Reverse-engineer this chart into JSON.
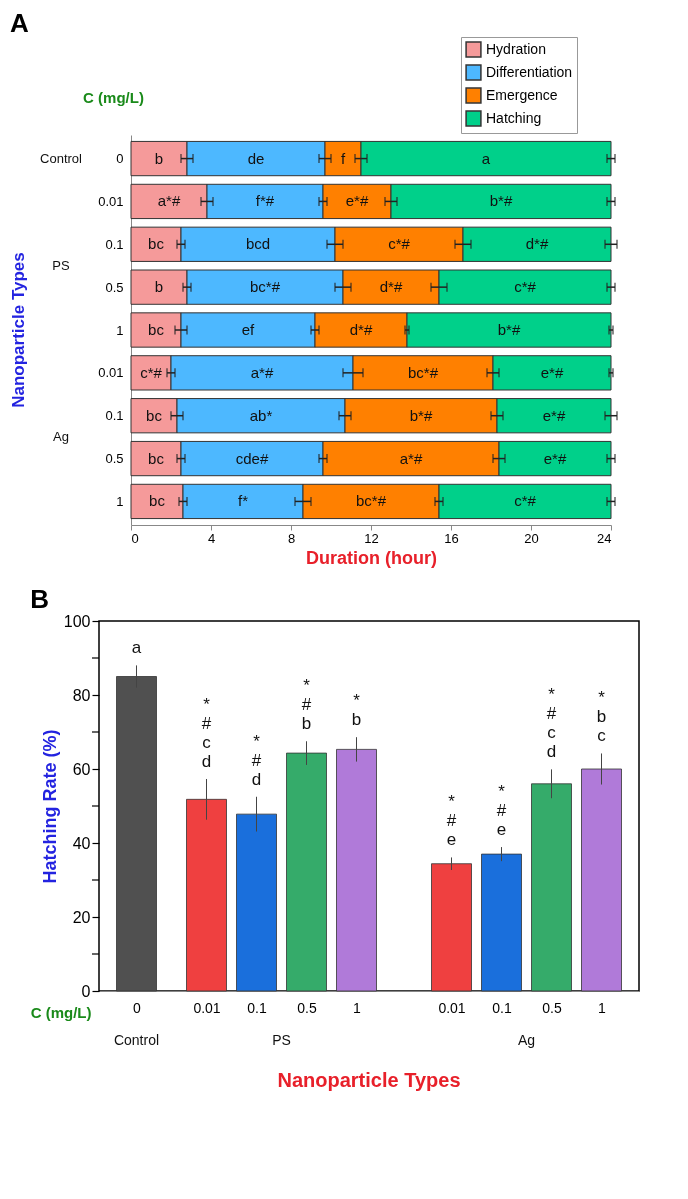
{
  "chart_data": [
    {
      "type": "bar",
      "orientation": "horizontal",
      "stacked": true,
      "title": "A",
      "xlabel": "Duration (hour)",
      "ylabel": "Nanoparticle Types",
      "categories": [
        "0",
        "0.01",
        "0.1",
        "0.5",
        "1",
        "0.01",
        "0.1",
        "0.5",
        "1"
      ],
      "series": [
        {
          "name": "Hydration",
          "color": "#f59a9a",
          "values": [
            2.8,
            3.8,
            2.5,
            2.8,
            2.5,
            2.0,
            2.3,
            2.5,
            2.6
          ],
          "errors": [
            0.3,
            0.3,
            0.2,
            0.2,
            0.3,
            0.2,
            0.3,
            0.2,
            0.2
          ],
          "value_labels": [
            "b",
            "a*#",
            "bc",
            "b",
            "bc",
            "c*#",
            "bc",
            "bc",
            "bc"
          ]
        },
        {
          "name": "Differentiation",
          "color": "#4db8ff",
          "values": [
            6.9,
            5.8,
            7.7,
            7.8,
            6.7,
            9.1,
            8.4,
            7.1,
            6.0
          ],
          "errors": [
            0.3,
            0.2,
            0.4,
            0.4,
            0.2,
            0.5,
            0.3,
            0.2,
            0.4
          ],
          "value_labels": [
            "de",
            "f*#",
            "bcd",
            "bc*#",
            "ef",
            "a*#",
            "ab*",
            "cde#",
            "f*"
          ]
        },
        {
          "name": "Emergence",
          "color": "#ff8000",
          "values": [
            1.8,
            3.4,
            6.4,
            4.8,
            4.6,
            7.0,
            7.6,
            8.8,
            6.8
          ],
          "errors": [
            0.3,
            0.3,
            0.4,
            0.4,
            0.1,
            0.3,
            0.3,
            0.3,
            0.2
          ],
          "value_labels": [
            "f",
            "e*#",
            "c*#",
            "d*#",
            "d*#",
            "bc*#",
            "b*#",
            "a*#",
            "bc*#"
          ]
        },
        {
          "name": "Hatching",
          "color": "#00d08a",
          "values": [
            12.5,
            11.0,
            7.4,
            8.6,
            10.2,
            5.9,
            5.7,
            5.6,
            8.6
          ],
          "errors": [
            0.2,
            0.2,
            0.3,
            0.2,
            0.1,
            0.1,
            0.3,
            0.2,
            0.2
          ],
          "value_labels": [
            "a",
            "b*#",
            "d*#",
            "c*#",
            "b*#",
            "e*#",
            "e*#",
            "e*#",
            "c*#"
          ]
        }
      ],
      "xlim": [
        0,
        24
      ],
      "xticks": [
        0,
        4,
        8,
        12,
        16,
        20,
        24
      ],
      "legend": "top right",
      "annotations": [
        "C (mg/L)",
        "Control",
        "PS",
        "Ag"
      ]
    },
    {
      "type": "bar",
      "title": "B",
      "xlabel": "Nanoparticle Types",
      "ylabel": "Hatching Rate (%)",
      "categories": [
        "0",
        "0.01",
        "0.1",
        "0.5",
        "1",
        "0.01",
        "0.1",
        "0.5",
        "1"
      ],
      "values": [
        85,
        51.8,
        47.8,
        64.3,
        65.3,
        34.4,
        37.0,
        56.0,
        60.0
      ],
      "errors": [
        3,
        5.5,
        4.7,
        3.2,
        3.3,
        1.7,
        1.9,
        3.9,
        4.2
      ],
      "colors": [
        "#505050",
        "#ef4040",
        "#1a6fdc",
        "#35ab6a",
        "#b07ad9",
        "#ef4040",
        "#1a6fdc",
        "#35ab6a",
        "#b07ad9"
      ],
      "value_labels": [
        "a",
        "*\n#\nc\nd",
        "*\n#\nd",
        "*\n#\nb",
        "*\nb",
        "*\n#\ne",
        "*\n#\ne",
        "*\n#\nc\nd",
        "*\nb\nc"
      ],
      "ylim": [
        0,
        100
      ],
      "yticks": [
        0,
        {
          "value": 10,
          "label": null
        },
        20,
        {
          "value": 30,
          "label": null
        },
        40,
        {
          "value": 50,
          "label": null
        },
        60,
        {
          "value": 70,
          "label": null
        },
        80,
        {
          "value": 90,
          "label": null
        },
        100
      ],
      "annotations": [
        "C (mg/L)",
        "Control",
        "PS",
        "Ag"
      ]
    }
  ]
}
